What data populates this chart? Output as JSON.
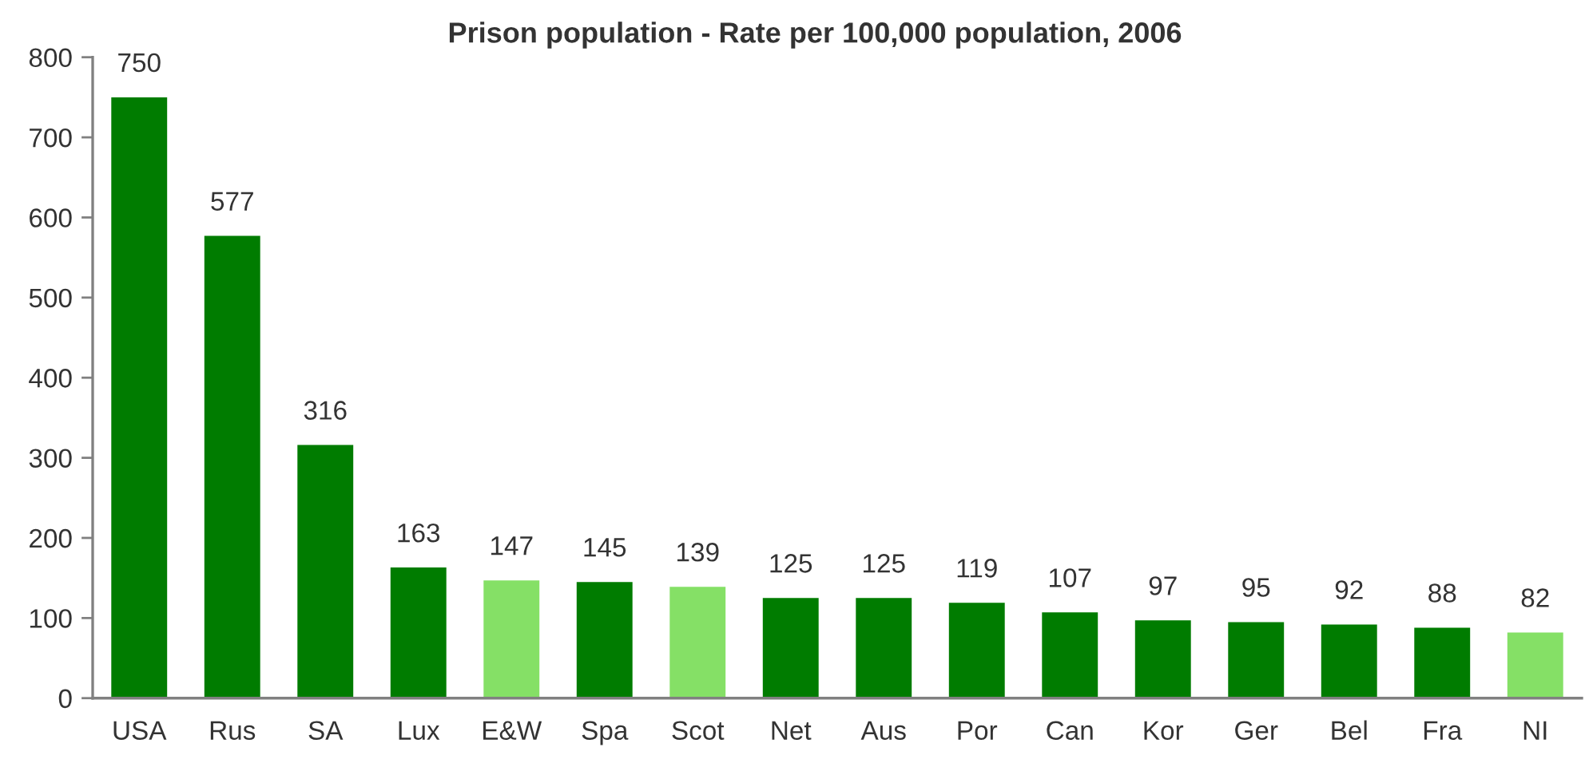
{
  "chart_data": {
    "type": "bar",
    "title": "Prison population - Rate per 100,000 population, 2006",
    "categories": [
      "USA",
      "Rus",
      "SA",
      "Lux",
      "E&W",
      "Spa",
      "Scot",
      "Net",
      "Aus",
      "Por",
      "Can",
      "Kor",
      "Ger",
      "Bel",
      "Fra",
      "NI"
    ],
    "values": [
      750,
      577,
      316,
      163,
      147,
      145,
      139,
      125,
      125,
      119,
      107,
      97,
      95,
      92,
      88,
      82
    ],
    "colors": [
      "#007c00",
      "#007c00",
      "#007c00",
      "#007c00",
      "#85e066",
      "#007c00",
      "#85e066",
      "#007c00",
      "#007c00",
      "#007c00",
      "#007c00",
      "#007c00",
      "#007c00",
      "#007c00",
      "#007c00",
      "#85e066"
    ],
    "ylim": [
      0,
      800
    ],
    "yticks": [
      0,
      100,
      200,
      300,
      400,
      500,
      600,
      700,
      800
    ],
    "data_labels": true,
    "grid": false,
    "legend": false
  }
}
